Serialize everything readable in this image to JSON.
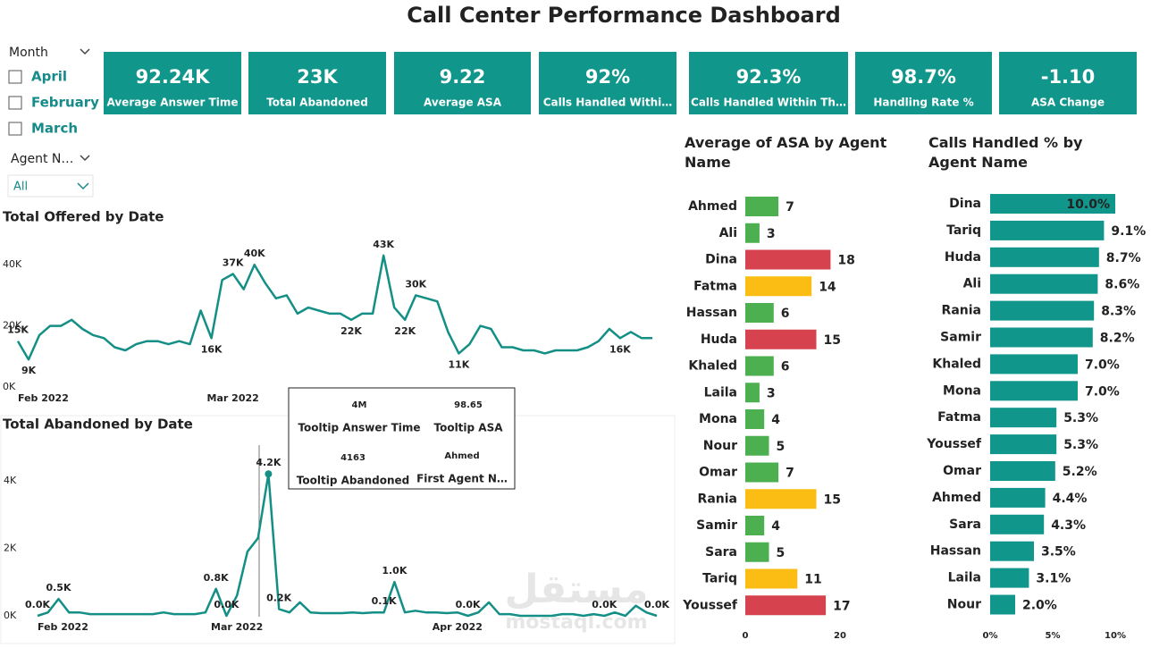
{
  "title": "Call Center Performance Dashboard",
  "slicers": {
    "month": {
      "header": "Month",
      "items": [
        "April",
        "February",
        "March"
      ]
    },
    "agent": {
      "header": "Agent N…",
      "selected": "All"
    }
  },
  "kpis": [
    {
      "value": "92.24K",
      "label": "Average Answer Time"
    },
    {
      "value": "23K",
      "label": "Total Abandoned"
    },
    {
      "value": "9.22",
      "label": "Average ASA"
    },
    {
      "value": "92%",
      "label": "Calls Handled Withi…"
    },
    {
      "value": "92.3%",
      "label": "Calls Handled Within Th…"
    },
    {
      "value": "98.7%",
      "label": "Handling Rate %"
    },
    {
      "value": "-1.10",
      "label": "ASA Change"
    }
  ],
  "tooltip": [
    {
      "value": "4M",
      "label": "Tooltip Answer Time"
    },
    {
      "value": "98.65",
      "label": "Tooltip ASA"
    },
    {
      "value": "4163",
      "label": "Tooltip Abandoned"
    },
    {
      "value": "Ahmed",
      "label": "First Agent N…"
    }
  ],
  "watermark": [
    "مستقل",
    "mostaql.com"
  ],
  "chart_data": [
    {
      "type": "line",
      "title": "Total Offered by Date",
      "color": "#148f86",
      "grid": false,
      "categories": [
        "Feb 2022",
        null,
        null,
        null,
        null,
        null,
        null,
        null,
        null,
        null,
        null,
        null,
        null,
        null,
        null,
        null,
        null,
        null,
        null,
        null,
        "Mar 2022",
        null,
        null,
        null,
        null,
        null,
        null,
        null,
        null,
        null,
        null,
        null,
        null,
        null,
        null,
        null,
        null,
        null,
        null,
        null,
        null,
        null,
        null,
        null,
        null,
        null,
        null,
        null,
        null,
        null,
        null,
        null,
        null,
        null,
        null,
        null,
        null,
        null,
        null,
        null
      ],
      "values": [
        15000,
        9000,
        17000,
        20000,
        20000,
        22000,
        19000,
        17000,
        16000,
        13000,
        12000,
        14000,
        15000,
        15000,
        14000,
        15000,
        14000,
        25000,
        16000,
        35000,
        37000,
        32000,
        40000,
        34000,
        29000,
        30000,
        24000,
        26000,
        25000,
        24000,
        24000,
        22000,
        24000,
        24000,
        43000,
        26000,
        22000,
        30000,
        29000,
        28000,
        18000,
        11000,
        14000,
        20000,
        19000,
        13000,
        13000,
        12000,
        12000,
        11000,
        12000,
        12000,
        12000,
        13000,
        15000,
        19000,
        16000,
        18000,
        16000,
        16000
      ],
      "value_labels": [
        "15K",
        "9K",
        null,
        null,
        null,
        null,
        null,
        null,
        null,
        null,
        null,
        null,
        null,
        null,
        null,
        null,
        null,
        null,
        "16K",
        null,
        "37K",
        null,
        "40K",
        null,
        null,
        null,
        null,
        null,
        null,
        null,
        null,
        "22K",
        null,
        null,
        "43K",
        null,
        "22K",
        "30K",
        null,
        null,
        null,
        "11K",
        null,
        null,
        null,
        null,
        null,
        null,
        null,
        null,
        null,
        null,
        null,
        null,
        null,
        null,
        "16K",
        null,
        null,
        null
      ],
      "ylim": [
        0,
        50000
      ],
      "yticks": [
        {
          "value": 0,
          "label": "0K"
        },
        {
          "value": 20000,
          "label": "20K"
        },
        {
          "value": 40000,
          "label": "40K"
        }
      ]
    },
    {
      "type": "line",
      "title": "Total Abandoned by Date",
      "color": "#148f86",
      "grid": false,
      "categories": [
        "Feb 2022",
        null,
        null,
        null,
        null,
        null,
        null,
        null,
        null,
        null,
        null,
        null,
        null,
        null,
        null,
        null,
        null,
        null,
        null,
        "Mar 2022",
        null,
        null,
        null,
        null,
        null,
        null,
        null,
        null,
        null,
        null,
        null,
        null,
        null,
        null,
        null,
        null,
        null,
        null,
        null,
        null,
        "Apr 2022",
        null,
        null,
        null,
        null,
        null,
        null,
        null,
        null,
        null,
        null,
        null,
        null,
        null,
        null,
        null,
        null,
        null,
        null,
        null
      ],
      "values": [
        0,
        100,
        500,
        100,
        100,
        50,
        50,
        50,
        50,
        50,
        50,
        50,
        100,
        50,
        50,
        50,
        100,
        800,
        0,
        600,
        1900,
        2300,
        4200,
        200,
        100,
        400,
        100,
        80,
        80,
        80,
        100,
        80,
        100,
        100,
        1000,
        100,
        150,
        100,
        100,
        80,
        100,
        0,
        100,
        400,
        50,
        50,
        0,
        0,
        0,
        0,
        50,
        50,
        0,
        50,
        0,
        100,
        0,
        300,
        100,
        0
      ],
      "value_labels": [
        "0.0K",
        null,
        "0.5K",
        null,
        null,
        null,
        null,
        null,
        null,
        null,
        null,
        null,
        null,
        null,
        null,
        null,
        null,
        "0.8K",
        "0.0K",
        null,
        null,
        null,
        "4.2K",
        "0.2K",
        null,
        null,
        null,
        null,
        null,
        null,
        null,
        null,
        null,
        "0.1K",
        "1.0K",
        null,
        null,
        null,
        null,
        null,
        null,
        "0.0K",
        null,
        null,
        null,
        null,
        null,
        null,
        null,
        null,
        null,
        null,
        null,
        null,
        "0.0K",
        null,
        null,
        null,
        null,
        "0.0K"
      ],
      "ylim": [
        0,
        5000
      ],
      "yticks": [
        {
          "value": 0,
          "label": "0K"
        },
        {
          "value": 2000,
          "label": "2K"
        },
        {
          "value": 4000,
          "label": "4K"
        }
      ]
    },
    {
      "type": "barh",
      "title": "Average of ASA by Agent Name",
      "categories": [
        "Ahmed",
        "Ali",
        "Dina",
        "Fatma",
        "Hassan",
        "Huda",
        "Khaled",
        "Laila",
        "Mona",
        "Nour",
        "Omar",
        "Rania",
        "Samir",
        "Sara",
        "Tariq",
        "Youssef"
      ],
      "values": [
        7,
        3,
        18,
        14,
        6,
        15,
        6,
        3,
        4,
        5,
        7,
        15,
        4,
        5,
        11,
        17
      ],
      "colors": [
        "#4caf50",
        "#4caf50",
        "#d6434f",
        "#fbbd14",
        "#4caf50",
        "#d6434f",
        "#4caf50",
        "#4caf50",
        "#4caf50",
        "#4caf50",
        "#4caf50",
        "#fbbd14",
        "#4caf50",
        "#4caf50",
        "#fbbd14",
        "#d6434f"
      ],
      "xlim": [
        0,
        20
      ],
      "xticks": [
        0,
        20
      ]
    },
    {
      "type": "barh",
      "title": "Calls Handled % by Agent Name",
      "color": "#11968c",
      "categories": [
        "Dina",
        "Tariq",
        "Huda",
        "Ali",
        "Rania",
        "Samir",
        "Khaled",
        "Mona",
        "Fatma",
        "Youssef",
        "Omar",
        "Ahmed",
        "Sara",
        "Hassan",
        "Laila",
        "Nour"
      ],
      "values": [
        10.0,
        9.1,
        8.7,
        8.6,
        8.3,
        8.2,
        7.0,
        7.0,
        5.3,
        5.3,
        5.2,
        4.4,
        4.3,
        3.5,
        3.1,
        2.0
      ],
      "value_labels": [
        "10.0%",
        "9.1%",
        "8.7%",
        "8.6%",
        "8.3%",
        "8.2%",
        "7.0%",
        "7.0%",
        "5.3%",
        "5.3%",
        "5.2%",
        "4.4%",
        "4.3%",
        "3.5%",
        "3.1%",
        "2.0%"
      ],
      "xlim": [
        0,
        10
      ],
      "xticks": [
        {
          "value": 0,
          "label": "0%"
        },
        {
          "value": 5,
          "label": "5%"
        },
        {
          "value": 10,
          "label": "10%"
        }
      ]
    }
  ]
}
